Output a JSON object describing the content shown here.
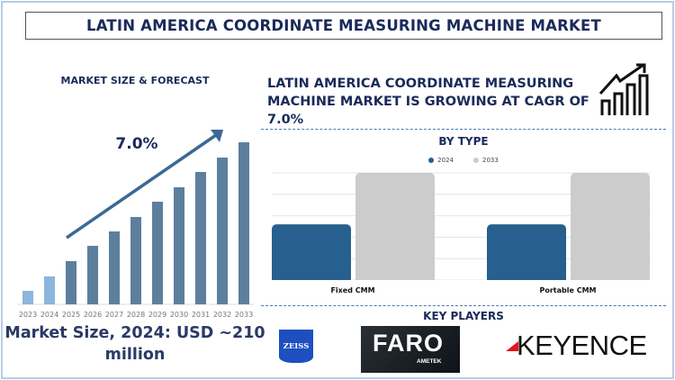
{
  "title": "LATIN AMERICA COORDINATE MEASURING MACHINE MARKET",
  "left": {
    "heading": "MARKET SIZE & FORECAST",
    "cagr_label": "7.0%",
    "market_size": "Market Size, 2024: USD ~210 million"
  },
  "right": {
    "heading": "LATIN AMERICA COORDINATE MEASURING MACHINE MARKET IS GROWING AT CAGR OF 7.0%",
    "icon": "growth-chart-icon",
    "key_players_title": "KEY PLAYERS",
    "players": [
      "ZEISS",
      "FARO",
      "AMETEK",
      "KEYENCE"
    ]
  },
  "chart_data": [
    {
      "type": "bar",
      "title": "",
      "categories": [
        "2023",
        "2024",
        "2025",
        "2026",
        "2027",
        "2028",
        "2029",
        "2030",
        "2031",
        "2032",
        "2033"
      ],
      "values": [
        15,
        31,
        48,
        65,
        81,
        97,
        114,
        130,
        147,
        163,
        180
      ],
      "note_values": "relative bar heights; no axis printed",
      "colors": {
        "historic": "#8cb6df",
        "forecast": "#5d7f9e"
      },
      "grid": false
    },
    {
      "type": "bar",
      "title": "BY TYPE",
      "categories": [
        "Fixed CMM",
        "Portable CMM"
      ],
      "series": [
        {
          "name": "2024",
          "values": [
            2.6,
            2.6
          ],
          "color": "#27608e"
        },
        {
          "name": "2033",
          "values": [
            5,
            5
          ],
          "color": "#cccccc"
        }
      ],
      "ylim": [
        0,
        5
      ],
      "grid": true,
      "legend": "top"
    }
  ]
}
